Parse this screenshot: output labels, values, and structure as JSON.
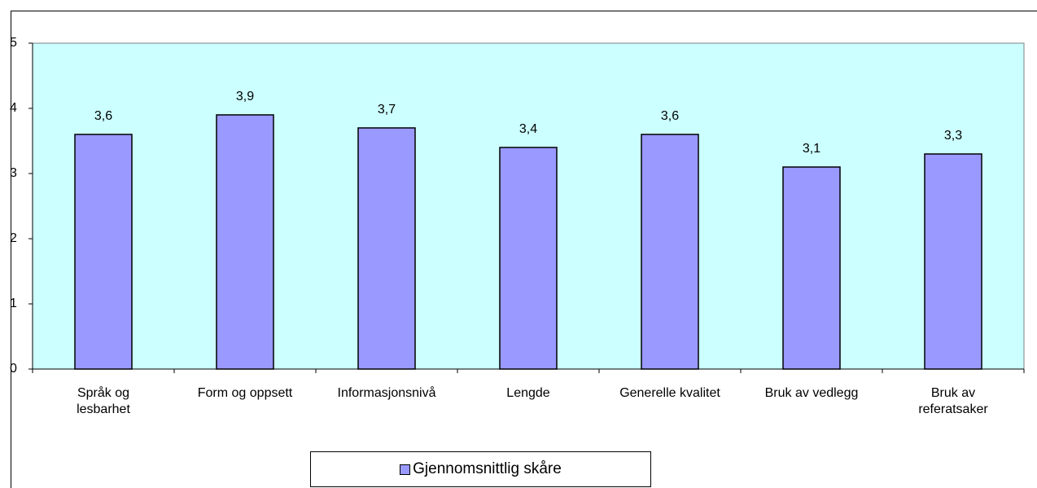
{
  "chart_data": {
    "type": "bar",
    "categories": [
      "Språk og\nlesbarhet",
      "Form og oppsett",
      "Informasjonsnivå",
      "Lengde",
      "Generelle kvalitet",
      "Bruk av vedlegg",
      "Bruk av\nreferatsaker"
    ],
    "series": [
      {
        "name": "Gjennomsnittlig skåre",
        "color": "#9999ff",
        "values": [
          3.6,
          3.9,
          3.7,
          3.4,
          3.6,
          3.1,
          3.3
        ],
        "value_labels": [
          "3,6",
          "3,9",
          "3,7",
          "3,4",
          "3,6",
          "3,1",
          "3,3"
        ]
      }
    ],
    "ylim": [
      0,
      5
    ],
    "yticks": [
      0,
      1,
      2,
      3,
      4,
      5
    ],
    "plot_background": "#ccffff"
  }
}
